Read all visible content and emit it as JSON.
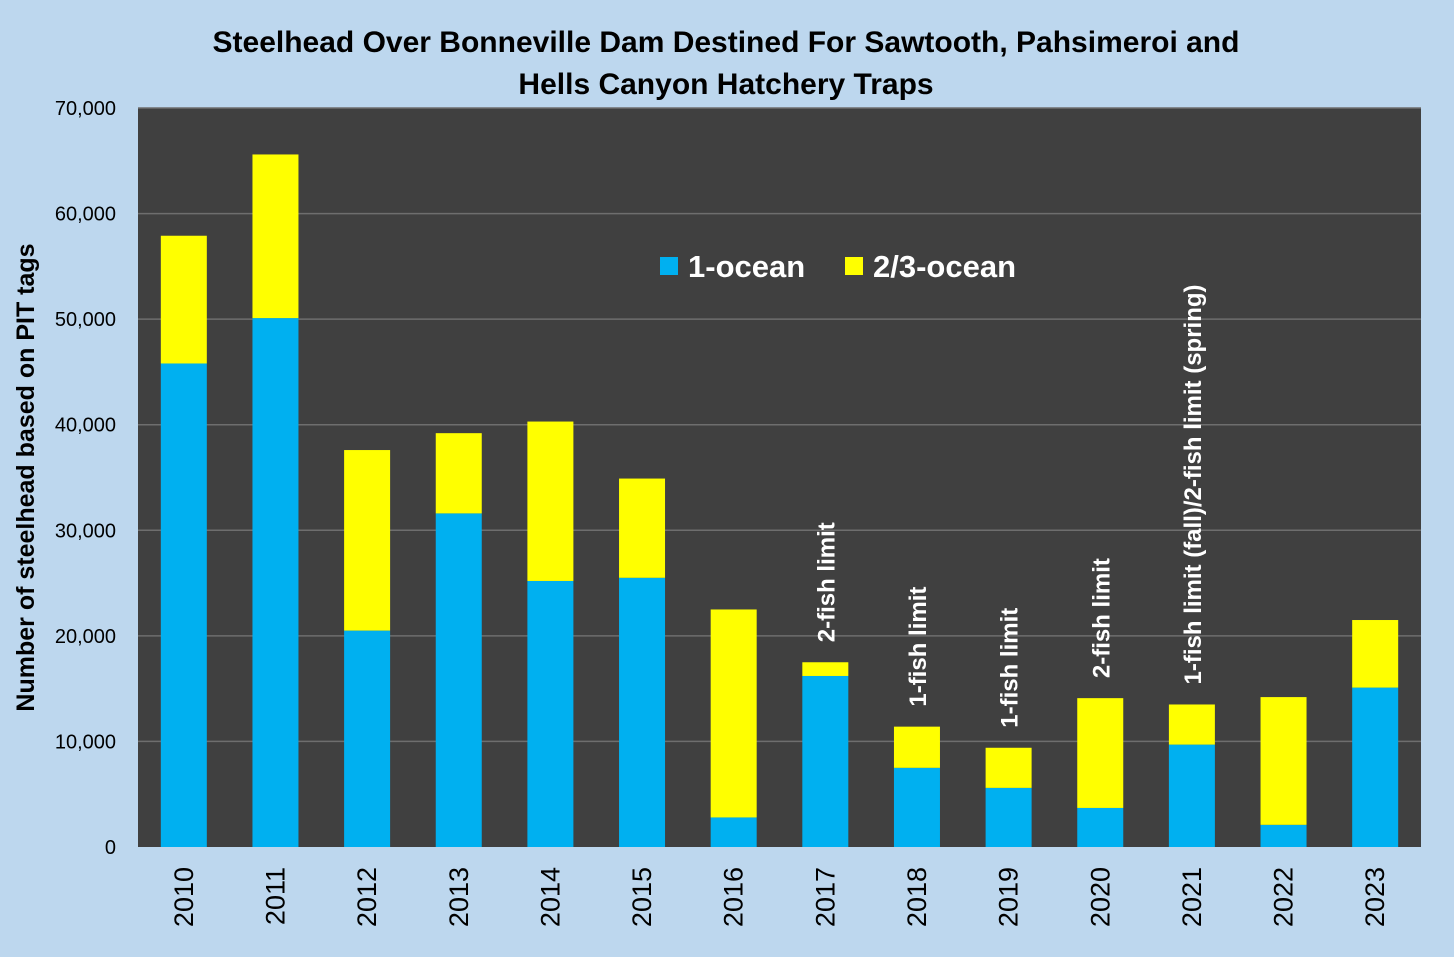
{
  "chart_data": {
    "type": "bar",
    "stacked": true,
    "title_lines": [
      "Steelhead Over Bonneville Dam Destined For Sawtooth, Pahsimeroi and",
      "Hells Canyon Hatchery Traps"
    ],
    "xlabel": "",
    "ylabel": "Number of steelhead based on PIT tags",
    "ylim": [
      0,
      70000
    ],
    "yticks": [
      0,
      10000,
      20000,
      30000,
      40000,
      50000,
      60000,
      70000
    ],
    "ytick_labels": [
      "0",
      "10,000",
      "20,000",
      "30,000",
      "40,000",
      "50,000",
      "60,000",
      "70,000"
    ],
    "grid": true,
    "legend_position": "top-center",
    "categories": [
      "2010",
      "2011",
      "2012",
      "2013",
      "2014",
      "2015",
      "2016",
      "2017",
      "2018",
      "2019",
      "2020",
      "2021",
      "2022",
      "2023"
    ],
    "series": [
      {
        "name": "1-ocean",
        "color": "#00b0f0",
        "values": [
          45800,
          50100,
          20500,
          31600,
          25200,
          25500,
          2800,
          16200,
          7500,
          5600,
          3700,
          9700,
          2100,
          15100
        ]
      },
      {
        "name": "2/3-ocean",
        "color": "#ffff00",
        "values": [
          12100,
          15500,
          17100,
          7600,
          15100,
          9400,
          19700,
          1300,
          3900,
          3800,
          10400,
          3800,
          12100,
          6400
        ]
      }
    ],
    "annotations": [
      {
        "category": "2017",
        "text": "2-fish limit"
      },
      {
        "category": "2018",
        "text": "1-fish limit"
      },
      {
        "category": "2019",
        "text": "1-fish limit"
      },
      {
        "category": "2020",
        "text": "2-fish limit"
      },
      {
        "category": "2021",
        "text": "1-fish limit (fall)/2-fish limit (spring)"
      }
    ],
    "colors": {
      "plot_background": "#404040",
      "page_background": "#bdd7ee",
      "gridline": "#6e6e6e"
    }
  }
}
